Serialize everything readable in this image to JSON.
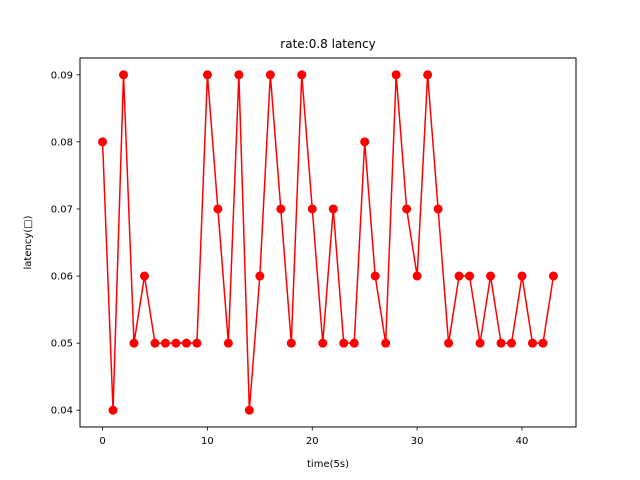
{
  "chart_data": {
    "type": "line",
    "title": "rate:0.8 latency",
    "xlabel": "time(5s)",
    "ylabel": "latency(□)",
    "xlim": [
      -2.15,
      45.15
    ],
    "ylim": [
      0.0375,
      0.0925
    ],
    "xticks": [
      0,
      10,
      20,
      30,
      40
    ],
    "xtick_labels": [
      "0",
      "10",
      "20",
      "30",
      "40"
    ],
    "yticks": [
      0.04,
      0.05,
      0.06,
      0.07,
      0.08,
      0.09
    ],
    "ytick_labels": [
      "0.04",
      "0.05",
      "0.06",
      "0.07",
      "0.08",
      "0.09"
    ],
    "grid": false,
    "legend": "none",
    "series": [
      {
        "color": "#ff0000",
        "marker": "circle",
        "x": [
          0,
          1,
          2,
          3,
          4,
          5,
          6,
          7,
          8,
          9,
          10,
          11,
          12,
          13,
          14,
          15,
          16,
          17,
          18,
          19,
          20,
          21,
          22,
          23,
          24,
          25,
          26,
          27,
          28,
          29,
          30,
          31,
          32,
          33,
          34,
          35,
          36,
          37,
          38,
          39,
          40,
          41,
          42,
          43
        ],
        "values": [
          0.08,
          0.04,
          0.09,
          0.05,
          0.06,
          0.05,
          0.05,
          0.05,
          0.05,
          0.05,
          0.09,
          0.07,
          0.05,
          0.09,
          0.04,
          0.06,
          0.09,
          0.07,
          0.05,
          0.09,
          0.07,
          0.05,
          0.07,
          0.05,
          0.05,
          0.08,
          0.06,
          0.05,
          0.09,
          0.07,
          0.06,
          0.09,
          0.07,
          0.05,
          0.06,
          0.06,
          0.05,
          0.06,
          0.05,
          0.05,
          0.06,
          0.05,
          0.05,
          0.06
        ]
      }
    ]
  }
}
